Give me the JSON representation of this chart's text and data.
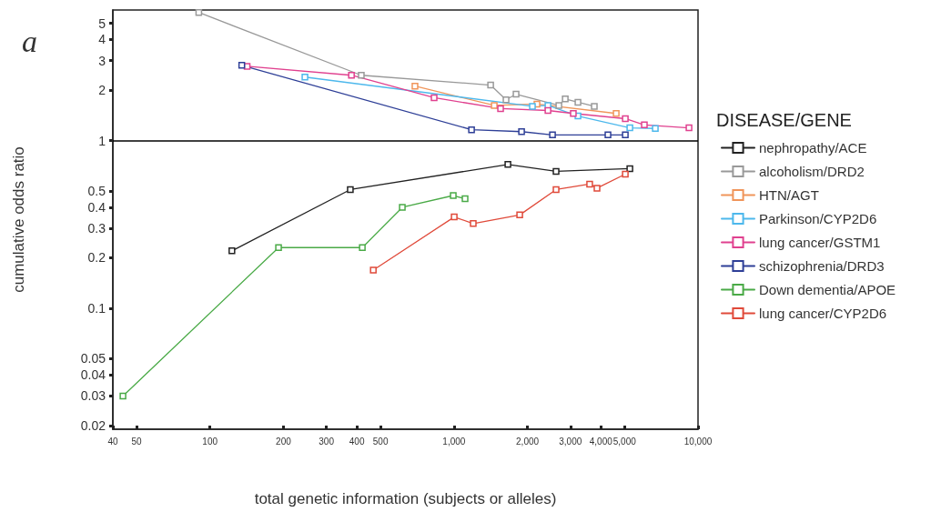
{
  "chart_data": {
    "type": "line",
    "xlabel": "total genetic information (subjects or alleles)",
    "ylabel": "cumulative odds ratio",
    "legend_title": "DISEASE/GENE",
    "annotations": [
      "a"
    ],
    "log": "xy",
    "grid": false,
    "legend": "right",
    "marker": "square",
    "line_style": "solid",
    "xlim": [
      40,
      10000
    ],
    "xticks": [
      40,
      50,
      100,
      200,
      300,
      400,
      500,
      {
        "value": 1000,
        "label": "1,000"
      },
      {
        "value": 2000,
        "label": "2,000"
      },
      {
        "value": 3000,
        "label": "3,000"
      },
      {
        "value": 4000,
        "label": "4,000"
      },
      {
        "value": 5000,
        "label": "5,000"
      },
      {
        "value": 10000,
        "label": "10,000"
      }
    ],
    "ylim": [
      0.019,
      6
    ],
    "yticks": [
      0.02,
      0.03,
      0.04,
      0.05,
      0.1,
      0.2,
      0.3,
      0.4,
      0.5,
      1,
      2,
      3,
      4,
      5
    ],
    "ref_lines": [
      {
        "axis": "y",
        "value": 1,
        "label": null,
        "color": "#000000"
      }
    ],
    "series": [
      {
        "name": "nephropathy/ACE",
        "color": "#222222",
        "x": [
          123,
          376,
          1663,
          2620,
          5256
        ],
        "values": [
          0.22,
          0.51,
          0.72,
          0.655,
          0.68
        ]
      },
      {
        "name": "alcoholism/DRD2",
        "color": "#999999",
        "x": [
          90,
          417,
          1413,
          1634,
          1796,
          2690,
          2857,
          3221,
          3758
        ],
        "values": [
          5.8,
          2.45,
          2.14,
          1.75,
          1.89,
          1.62,
          1.77,
          1.69,
          1.6
        ]
      },
      {
        "name": "HTN/AGT",
        "color": "#f0955a",
        "x": [
          692,
          1462,
          2188,
          4620
        ],
        "values": [
          2.11,
          1.62,
          1.65,
          1.45
        ]
      },
      {
        "name": "Parkinson/CYP2D6",
        "color": "#4db8ec",
        "x": [
          245,
          2096,
          2427,
          3221,
          5256,
          6683
        ],
        "values": [
          2.39,
          1.6,
          1.62,
          1.4,
          1.19,
          1.18
        ]
      },
      {
        "name": "lung cancer/GSTM1",
        "color": "#e0418f",
        "x": [
          142,
          380,
          829,
          1552,
          2427,
          3083,
          5035,
          6026,
          9183
        ],
        "values": [
          2.77,
          2.45,
          1.8,
          1.55,
          1.51,
          1.45,
          1.35,
          1.24,
          1.19
        ]
      },
      {
        "name": "schizophrenia/DRD3",
        "color": "#2e3f97",
        "x": [
          135,
          1180,
          1892,
          2533,
          4275,
          5035
        ],
        "values": [
          2.81,
          1.16,
          1.13,
          1.08,
          1.08,
          1.08
        ]
      },
      {
        "name": "Down dementia/APOE",
        "color": "#4aaa47",
        "x": [
          44,
          191,
          421,
          614,
          993,
          1110
        ],
        "values": [
          0.03,
          0.23,
          0.23,
          0.4,
          0.47,
          0.45
        ]
      },
      {
        "name": "lung cancer/CYP2D6",
        "color": "#e04a3a",
        "x": [
          467,
          1002,
          1199,
          1859,
          2620,
          3597,
          3855,
          5035
        ],
        "values": [
          0.169,
          0.35,
          0.32,
          0.36,
          0.51,
          0.55,
          0.52,
          0.63
        ]
      }
    ]
  }
}
